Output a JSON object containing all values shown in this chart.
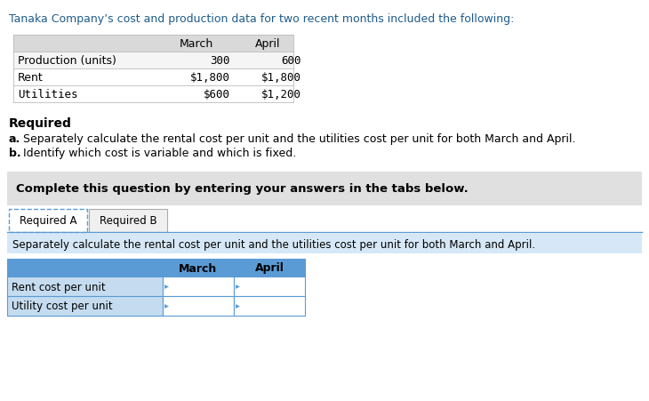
{
  "title": "Tanaka Company’s cost and production data for two recent months included the following:",
  "title_color": "#1F5C8B",
  "title_fontsize": 9.5,
  "top_table_headers": [
    "",
    "March",
    "April"
  ],
  "top_table_rows": [
    [
      "Production (units)",
      "300",
      "600"
    ],
    [
      "Rent",
      "$1,800",
      "$1,800"
    ],
    [
      "Utilities",
      "$600",
      "$1,200"
    ]
  ],
  "top_table_header_bg": "#D9D9D9",
  "top_table_alt_bg": "#EEEEEE",
  "required_label": "Required",
  "req_a_prefix": "a.",
  "req_a_rest": " Separately calculate the rental cost per unit and the utilities cost per unit for both March and April.",
  "req_b_prefix": "b.",
  "req_b_rest": " Identify which cost is variable and which is fixed.",
  "req_text_color": "#000000",
  "req_ab_color": "#4A4A4A",
  "complete_box_text": "Complete this question by entering your answers in the tabs below.",
  "complete_box_bg": "#E0E0E0",
  "tab_a_label": "Required A",
  "tab_b_label": "Required B",
  "tab_border_color": "#5B9BD5",
  "subtitle_text": "Separately calculate the rental cost per unit and the utilities cost per unit for both March and April.",
  "subtitle_bg": "#D6E8F7",
  "bottom_table_headers": [
    "",
    "March",
    "April"
  ],
  "bottom_table_rows": [
    [
      "Rent cost per unit",
      "",
      ""
    ],
    [
      "Utility cost per unit",
      "",
      ""
    ]
  ],
  "bottom_header_bg": "#5B9BD5",
  "bottom_label_bg": "#C5DCF0",
  "bottom_border_color": "#5B9BD5",
  "bg_color": "#FFFFFF",
  "font_size": 9.0
}
